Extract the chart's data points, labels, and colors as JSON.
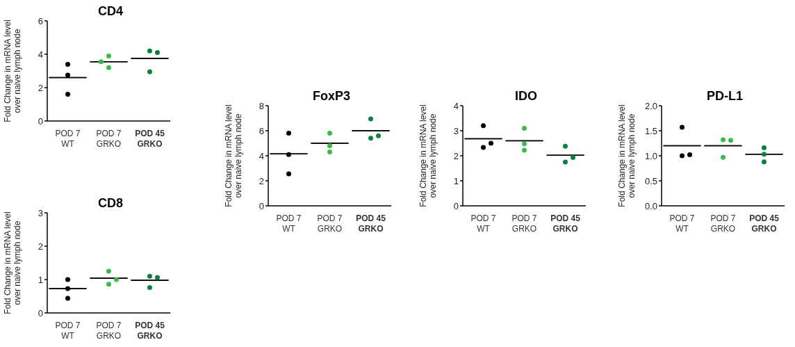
{
  "chart_data": [
    {
      "type": "scatter",
      "title": "CD4",
      "ylabel": "Fold Change in mRNA level\nover naive lymph node",
      "categories": [
        "POD 7\nWT",
        "POD 7\nGRKO",
        "POD 45\nGRKO"
      ],
      "ylim": [
        0,
        6
      ],
      "yticks": [
        0,
        2,
        4,
        6
      ],
      "marker": "circle",
      "series": [
        {
          "color": "#000000",
          "x": [
            "POD 7\nWT",
            "POD 7\nWT",
            "POD 7\nWT"
          ],
          "values": [
            3.4,
            2.75,
            1.6
          ]
        },
        {
          "color": "#3cb94a",
          "x": [
            "POD 7\nGRKO",
            "POD 7\nGRKO",
            "POD 7\nGRKO"
          ],
          "values": [
            3.9,
            3.2,
            3.55
          ]
        },
        {
          "color": "#0a8040",
          "x": [
            "POD 45\nGRKO",
            "POD 45\nGRKO",
            "POD 45\nGRKO"
          ],
          "values": [
            4.2,
            4.1,
            2.95
          ]
        },
        {
          "type": "box",
          "color": "#000000",
          "boxes": [
            {
              "low": 2.6,
              "q1": 2.6,
              "median": 2.6,
              "q3": 2.6,
              "high": 2.6
            },
            {
              "low": 3.55,
              "q1": 3.55,
              "median": 3.55,
              "q3": 3.55,
              "high": 3.55
            },
            {
              "low": 3.75,
              "q1": 3.75,
              "median": 3.75,
              "q3": 3.75,
              "high": 3.75
            }
          ]
        }
      ]
    },
    {
      "type": "scatter",
      "title": "CD8",
      "ylabel": "Fold Change in mRNA level\nover naive lymph node",
      "categories": [
        "POD 7\nWT",
        "POD 7\nGRKO",
        "POD 45\nGRKO"
      ],
      "ylim": [
        0,
        3
      ],
      "yticks": [
        0,
        1,
        2,
        3
      ],
      "marker": "circle",
      "series": [
        {
          "color": "#000000",
          "x": [
            "POD 7\nWT",
            "POD 7\nWT",
            "POD 7\nWT"
          ],
          "values": [
            1.0,
            0.73,
            0.44
          ]
        },
        {
          "color": "#3cb94a",
          "x": [
            "POD 7\nGRKO",
            "POD 7\nGRKO",
            "POD 7\nGRKO"
          ],
          "values": [
            1.25,
            0.86,
            1.0
          ]
        },
        {
          "color": "#0a8040",
          "x": [
            "POD 45\nGRKO",
            "POD 45\nGRKO",
            "POD 45\nGRKO"
          ],
          "values": [
            1.1,
            1.06,
            0.76
          ]
        },
        {
          "type": "box",
          "color": "#000000",
          "boxes": [
            {
              "low": 0.73,
              "q1": 0.73,
              "median": 0.73,
              "q3": 0.73,
              "high": 0.73
            },
            {
              "low": 1.04,
              "q1": 1.04,
              "median": 1.04,
              "q3": 1.04,
              "high": 1.04
            },
            {
              "low": 0.98,
              "q1": 0.98,
              "median": 0.98,
              "q3": 0.98,
              "high": 0.98
            }
          ]
        }
      ]
    },
    {
      "type": "scatter",
      "title": "FoxP3",
      "ylabel": "Fold Change in mRNA level\nover naive lymph node",
      "categories": [
        "POD 7\nWT",
        "POD 7\nGRKO",
        "POD 45\nGRKO"
      ],
      "ylim": [
        0,
        8
      ],
      "yticks": [
        0,
        2,
        4,
        6,
        8
      ],
      "marker": "circle",
      "series": [
        {
          "color": "#000000",
          "x": [
            "POD 7\nWT",
            "POD 7\nWT",
            "POD 7\nWT"
          ],
          "values": [
            5.8,
            4.1,
            2.55
          ]
        },
        {
          "color": "#3cb94a",
          "x": [
            "POD 7\nGRKO",
            "POD 7\nGRKO",
            "POD 7\nGRKO"
          ],
          "values": [
            5.8,
            4.3,
            4.8
          ]
        },
        {
          "color": "#0a8040",
          "x": [
            "POD 45\nGRKO",
            "POD 45\nGRKO",
            "POD 45\nGRKO"
          ],
          "values": [
            6.95,
            5.4,
            5.6
          ]
        },
        {
          "type": "box",
          "color": "#000000",
          "boxes": [
            {
              "low": 4.15,
              "q1": 4.15,
              "median": 4.15,
              "q3": 4.15,
              "high": 4.15
            },
            {
              "low": 5.0,
              "q1": 5.0,
              "median": 5.0,
              "q3": 5.0,
              "high": 5.0
            },
            {
              "low": 6.0,
              "q1": 6.0,
              "median": 6.0,
              "q3": 6.0,
              "high": 6.0
            }
          ]
        }
      ]
    },
    {
      "type": "scatter",
      "title": "IDO",
      "ylabel": "Fold Change in mRNA level\nover naive lymph node",
      "categories": [
        "POD 7\nWT",
        "POD 7\nGRKO",
        "POD 45\nGRKO"
      ],
      "ylim": [
        0,
        4
      ],
      "yticks": [
        0,
        1,
        2,
        3,
        4
      ],
      "marker": "circle",
      "series": [
        {
          "color": "#000000",
          "x": [
            "POD 7\nWT",
            "POD 7\nWT",
            "POD 7\nWT"
          ],
          "values": [
            3.2,
            2.33,
            2.5
          ]
        },
        {
          "color": "#3cb94a",
          "x": [
            "POD 7\nGRKO",
            "POD 7\nGRKO",
            "POD 7\nGRKO"
          ],
          "values": [
            3.1,
            2.48,
            2.22
          ]
        },
        {
          "color": "#0a8040",
          "x": [
            "POD 45\nGRKO",
            "POD 45\nGRKO",
            "POD 45\nGRKO"
          ],
          "values": [
            2.38,
            1.75,
            1.93
          ]
        },
        {
          "type": "box",
          "color": "#000000",
          "boxes": [
            {
              "low": 2.68,
              "q1": 2.68,
              "median": 2.68,
              "q3": 2.68,
              "high": 2.68
            },
            {
              "low": 2.6,
              "q1": 2.6,
              "median": 2.6,
              "q3": 2.6,
              "high": 2.6
            },
            {
              "low": 2.02,
              "q1": 2.02,
              "median": 2.02,
              "q3": 2.02,
              "high": 2.02
            }
          ]
        }
      ]
    },
    {
      "type": "scatter",
      "title": "PD-L1",
      "ylabel": "Fold Change in mRNA level\nover naive lymph node",
      "categories": [
        "POD 7\nWT",
        "POD 7\nGRKO",
        "POD 45\nGRKO"
      ],
      "ylim": [
        0,
        2
      ],
      "yticks": [
        {
          "value": 0,
          "label": "0.0"
        },
        {
          "value": 0.5,
          "label": "0.5"
        },
        {
          "value": 1,
          "label": "1.0"
        },
        {
          "value": 1.5,
          "label": "1.5"
        },
        {
          "value": 2,
          "label": "2.0"
        }
      ],
      "marker": "circle",
      "series": [
        {
          "color": "#000000",
          "x": [
            "POD 7\nWT",
            "POD 7\nWT",
            "POD 7\nWT"
          ],
          "values": [
            1.57,
            1.0,
            1.02
          ]
        },
        {
          "color": "#3cb94a",
          "x": [
            "POD 7\nGRKO",
            "POD 7\nGRKO",
            "POD 7\nGRKO"
          ],
          "values": [
            1.32,
            1.31,
            0.97
          ]
        },
        {
          "color": "#0a8040",
          "x": [
            "POD 45\nGRKO",
            "POD 45\nGRKO",
            "POD 45\nGRKO"
          ],
          "values": [
            1.16,
            1.03,
            0.88
          ]
        },
        {
          "type": "box",
          "color": "#000000",
          "boxes": [
            {
              "low": 1.2,
              "q1": 1.2,
              "median": 1.2,
              "q3": 1.2,
              "high": 1.2
            },
            {
              "low": 1.2,
              "q1": 1.2,
              "median": 1.2,
              "q3": 1.2,
              "high": 1.2
            },
            {
              "low": 1.03,
              "q1": 1.03,
              "median": 1.03,
              "q3": 1.03,
              "high": 1.03
            }
          ]
        }
      ]
    }
  ]
}
